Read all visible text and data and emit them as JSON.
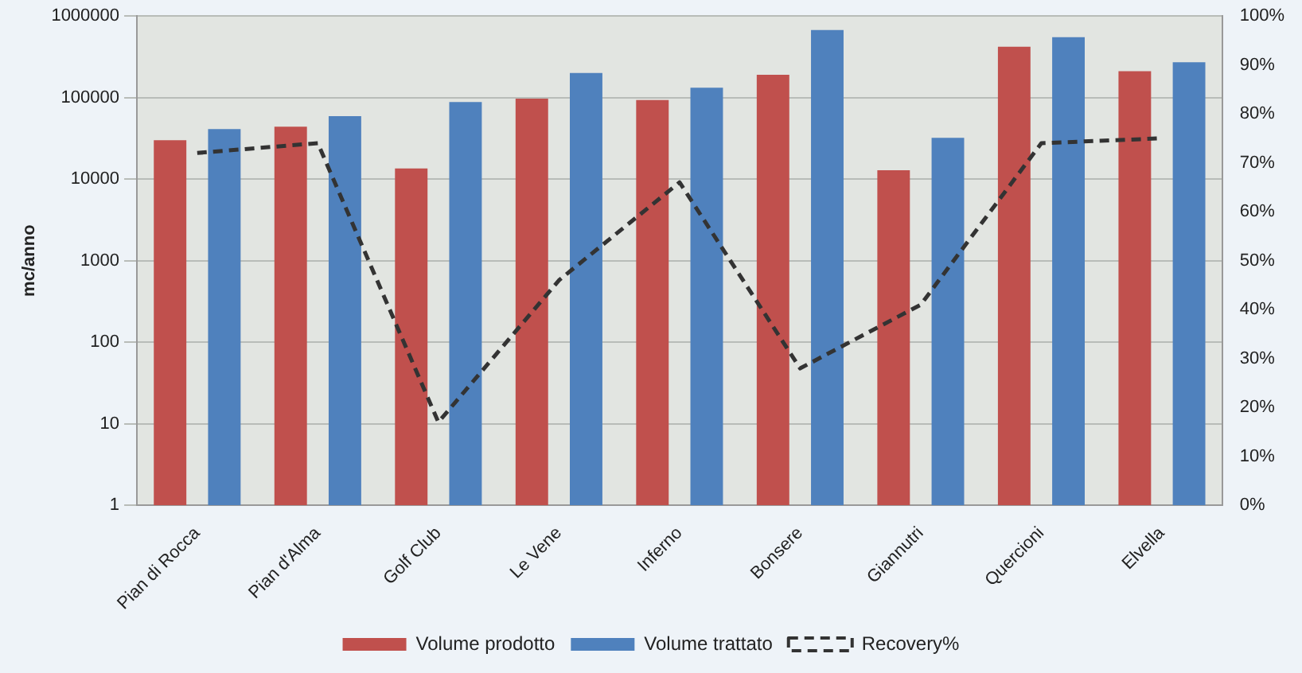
{
  "chart_data": {
    "type": "bar",
    "categories": [
      "Pian di Rocca",
      "Pian d'Alma",
      "Golf Club",
      "Le Vene",
      "Inferno",
      "Bonsere",
      "Giannutri",
      "Quercioni",
      "Elvella"
    ],
    "ylabel": "mc/anno",
    "log": "y",
    "ylim": [
      1,
      1000000
    ],
    "yticks": [
      1,
      10,
      100,
      1000,
      10000,
      100000,
      1000000
    ],
    "y2lim": [
      0,
      100
    ],
    "y2ticks": [
      {
        "value": 0,
        "label": "0%"
      },
      {
        "value": 10,
        "label": "10%"
      },
      {
        "value": 20,
        "label": "20%"
      },
      {
        "value": 30,
        "label": "30%"
      },
      {
        "value": 40,
        "label": "40%"
      },
      {
        "value": 50,
        "label": "50%"
      },
      {
        "value": 60,
        "label": "60%"
      },
      {
        "value": 70,
        "label": "70%"
      },
      {
        "value": 80,
        "label": "80%"
      },
      {
        "value": 90,
        "label": "90%"
      },
      {
        "value": 100,
        "label": "100%"
      }
    ],
    "grid": "y",
    "legend": "bottom",
    "series": [
      {
        "name": "Volume prodotto",
        "color": "#c0504d",
        "values": [
          30000,
          44000,
          13500,
          97000,
          93000,
          190000,
          12800,
          420000,
          210000
        ]
      },
      {
        "name": "Volume trattato",
        "color": "#4f81bd",
        "values": [
          41000,
          59000,
          88000,
          200000,
          132000,
          670000,
          32000,
          550000,
          270000
        ]
      },
      {
        "name": "Recovery%",
        "type": "line",
        "axis": "y2",
        "color": "#333333",
        "line_style": "dashed",
        "marker": "none",
        "values": [
          72,
          74,
          17,
          46,
          66,
          28,
          41,
          74,
          75
        ]
      }
    ]
  }
}
